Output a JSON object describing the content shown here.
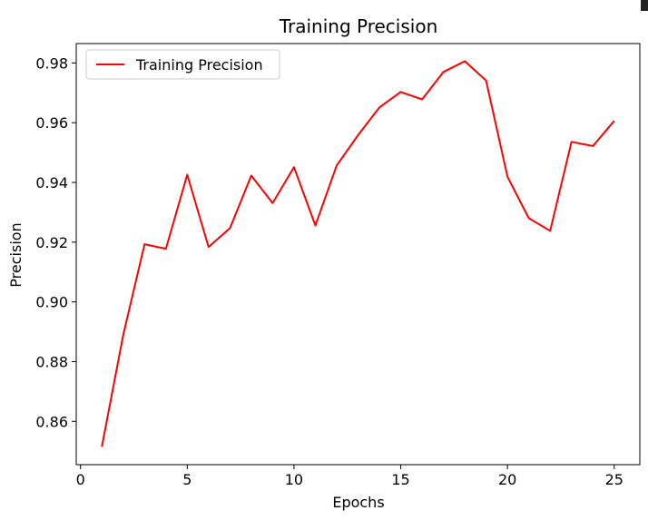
{
  "chart_data": {
    "type": "line",
    "title": "Training Precision",
    "xlabel": "Epochs",
    "ylabel": "Precision",
    "xlim": [
      -0.2,
      26.2
    ],
    "ylim": [
      0.8455,
      0.9865
    ],
    "xticks": [
      0,
      5,
      10,
      15,
      20,
      25
    ],
    "yticks": [
      0.86,
      0.88,
      0.9,
      0.92,
      0.94,
      0.96,
      0.98
    ],
    "grid": false,
    "legend": "upper left",
    "series": [
      {
        "name": "Training Precision",
        "color": "#ff0000",
        "x": [
          1,
          2,
          3,
          4,
          5,
          6,
          7,
          8,
          9,
          10,
          11,
          12,
          13,
          14,
          15,
          16,
          17,
          18,
          19,
          20,
          21,
          22,
          23,
          24,
          25
        ],
        "y": [
          0.8515,
          0.889,
          0.9193,
          0.9178,
          0.9426,
          0.9184,
          0.9247,
          0.9423,
          0.9331,
          0.9451,
          0.9256,
          0.9457,
          0.9558,
          0.9651,
          0.9703,
          0.9678,
          0.977,
          0.9806,
          0.9741,
          0.9419,
          0.928,
          0.9238,
          0.9536,
          0.9522,
          0.9606
        ]
      }
    ]
  }
}
